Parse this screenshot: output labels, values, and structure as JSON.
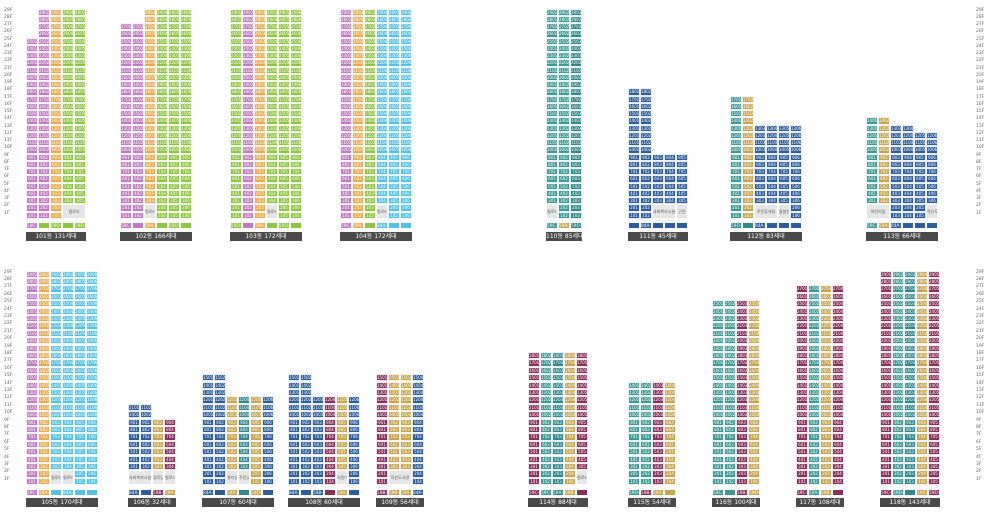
{
  "colors": {
    "59C-1": "#c27ac5",
    "59A-1": "#f0a94a",
    "59D-1": "#8dc63f",
    "84A-1": "#53c1e8",
    "59C-2": "#3d9a95",
    "59A-2": "#c8a44a",
    "59D-2": "#2f8a8f",
    "84A-2": "#2c5da0",
    "59B-2": "#8b2f5a"
  },
  "floor_labels": [
    "29F",
    "28F",
    "27F",
    "26F",
    "25F",
    "24F",
    "23F",
    "22F",
    "21F",
    "20F",
    "19F",
    "18F",
    "17F",
    "16F",
    "15F",
    "14F",
    "13F",
    "12F",
    "11F",
    "10F",
    "9F",
    "8F",
    "7F",
    "6F",
    "5F",
    "4F",
    "3F",
    "2F",
    "1F"
  ],
  "buildings": [
    {
      "id": "101",
      "label": "101동 131세대",
      "top_floor": [
        25,
        29,
        29,
        29,
        29
      ],
      "types": [
        "59C-1",
        "59C-1",
        "59A-1",
        "59D-1",
        "59D-1"
      ],
      "blanks": [
        {
          "cols": [
            3,
            4
          ],
          "from": 1,
          "to": 2,
          "text": "필로티"
        }
      ],
      "type_strip": [
        "59C-1",
        "59D-1",
        "59D-1",
        "59D-1",
        "59D-1"
      ],
      "type_labels": [
        "59C-1",
        "",
        "59D-1",
        "",
        "59D-1"
      ]
    },
    {
      "id": "102",
      "label": "102동 166세대",
      "top_floor": [
        27,
        27,
        29,
        29,
        29,
        29
      ],
      "types": [
        "59C-1",
        "59C-1",
        "59A-1",
        "59D-1",
        "59D-1",
        "59D-1"
      ],
      "blanks": [
        {
          "cols": [
            2
          ],
          "from": 1,
          "to": 2,
          "text": "필로티"
        }
      ],
      "type_strip": [
        "59C-1",
        "59C-1",
        "59A-1",
        "59D-1",
        "59D-1",
        "59D-1"
      ],
      "type_labels": [
        "59C-1",
        "",
        "59A-1",
        "",
        "59D-1",
        ""
      ]
    },
    {
      "id": "103",
      "label": "103동 172세대",
      "top_floor": [
        29,
        29,
        29,
        29,
        29,
        29
      ],
      "types": [
        "59D-1",
        "59C-1",
        "59A-1",
        "59D-1",
        "59D-1",
        "59D-1"
      ],
      "blanks": [
        {
          "cols": [
            3
          ],
          "from": 1,
          "to": 2,
          "text": "필로티"
        }
      ],
      "type_strip": [
        "59D-1",
        "59C-1",
        "59A-1",
        "59D-1",
        "59D-1",
        "59D-1"
      ],
      "type_labels": [
        "59D-1",
        "",
        "59A-1",
        "",
        "59D-1",
        ""
      ]
    },
    {
      "id": "104",
      "label": "104동 172세대",
      "top_floor": [
        29,
        29,
        29,
        29,
        29,
        29
      ],
      "types": [
        "59C-1",
        "59A-1",
        "59D-1",
        "84A-1",
        "84A-1",
        "84A-1"
      ],
      "blanks": [
        {
          "cols": [
            3
          ],
          "from": 1,
          "to": 2,
          "text": "필로티"
        }
      ],
      "type_strip": [
        "59C-1",
        "59A-1",
        "59D-1",
        "84A-1",
        "84A-1",
        "84A-1"
      ],
      "type_labels": [
        "59C-1",
        "59A-1",
        "",
        "84A-1",
        "",
        ""
      ]
    },
    {
      "id": "110",
      "label": "110동 85세대",
      "top_floor": [
        29,
        29,
        29
      ],
      "types": [
        "59C-2",
        "59C-2",
        "59D-2"
      ],
      "blanks": [
        {
          "cols": [
            0
          ],
          "from": 1,
          "to": 2,
          "text": "필로티"
        }
      ],
      "type_strip": [
        "59C-2",
        "59A-2",
        "59D-2"
      ],
      "type_labels": [
        "59C-2",
        "59A-2",
        "59D-2"
      ]
    },
    {
      "id": "111",
      "label": "111동 45세대",
      "top_floor": [
        18,
        18,
        9,
        9,
        9
      ],
      "types": [
        "84A-2",
        "84A-2",
        "84A-2",
        "84A-2",
        "84A-2"
      ],
      "blanks": [
        {
          "cols": [
            2,
            3
          ],
          "from": 1,
          "to": 2,
          "text": "사회복지시설"
        },
        {
          "cols": [
            4
          ],
          "from": 1,
          "to": 2,
          "text": "근린"
        }
      ],
      "type_strip": [
        "84A-2",
        "84A-2",
        "84A-2",
        "84A-2",
        "84A-2"
      ],
      "type_labels": [
        "",
        "84A-2",
        "",
        "",
        ""
      ]
    },
    {
      "id": "112",
      "label": "112동 83세대",
      "top_floor": [
        17,
        17,
        13,
        13,
        13,
        13
      ],
      "types": [
        "59C-2",
        "59A-2",
        "84A-2",
        "84A-2",
        "84A-2",
        "84A-2"
      ],
      "blanks": [
        {
          "cols": [
            2,
            3
          ],
          "from": 1,
          "to": 2,
          "text": "주민휴게실"
        },
        {
          "cols": [
            4
          ],
          "from": 1,
          "to": 2,
          "text": "돌봄센터"
        }
      ],
      "type_strip": [
        "59D-2",
        "59D-2",
        "84A-2",
        "84A-2",
        "84A-2",
        "84A-2"
      ],
      "type_labels": [
        "59D-2",
        "",
        "84A-2",
        "",
        "",
        ""
      ]
    },
    {
      "id": "113",
      "label": "113동 66세대",
      "top_floor": [
        14,
        14,
        13,
        13,
        12,
        12
      ],
      "types": [
        "59C-2",
        "59A-2",
        "84A-2",
        "84A-2",
        "84A-2",
        "84A-2"
      ],
      "blanks": [
        {
          "cols": [
            0,
            1
          ],
          "from": 1,
          "to": 2,
          "text": "어린이집"
        },
        {
          "cols": [
            5
          ],
          "from": 1,
          "to": 2,
          "text": "작은도서관"
        }
      ],
      "type_strip": [
        "59C-2",
        "59A-2",
        "84A-2",
        "84A-2",
        "84A-2",
        "84A-2"
      ],
      "type_labels": [
        "59C-2",
        "59A-2",
        "84A-2",
        "",
        "",
        ""
      ]
    },
    {
      "id": "105",
      "label": "105동 170세대",
      "top_floor": [
        29,
        29,
        29,
        29,
        29,
        29
      ],
      "types": [
        "59C-1",
        "59A-1",
        "84A-1",
        "84A-1",
        "84A-1",
        "84A-1"
      ],
      "blanks": [
        {
          "cols": [
            2
          ],
          "from": 1,
          "to": 2,
          "text": "필로티"
        },
        {
          "cols": [
            3
          ],
          "from": 1,
          "to": 2,
          "text": "필로티"
        }
      ],
      "type_strip": [
        "59C-1",
        "59A-1",
        "84A-1",
        "84A-1",
        "84A-1",
        "84A-1"
      ],
      "type_labels": [
        "59C-1",
        "59A-1",
        "",
        "84A-1",
        "",
        ""
      ]
    },
    {
      "id": "106",
      "label": "106동 32세대",
      "top_floor": [
        11,
        11,
        9,
        9
      ],
      "types": [
        "84A-2",
        "84A-2",
        "59A-2",
        "59B-2"
      ],
      "blanks": [
        {
          "cols": [
            0,
            1
          ],
          "from": 1,
          "to": 2,
          "text": "사회복지시설"
        },
        {
          "cols": [
            2
          ],
          "from": 1,
          "to": 2,
          "text": "경로당"
        },
        {
          "cols": [
            3
          ],
          "from": 1,
          "to": 2,
          "text": "필로티"
        }
      ],
      "type_strip": [
        "84A-2",
        "84A-2",
        "59B-2",
        "59A-2"
      ],
      "type_labels": [
        "84A-2",
        "",
        "59B-2",
        "59A-2"
      ]
    },
    {
      "id": "107",
      "label": "107동 60세대",
      "top_floor": [
        15,
        15,
        12,
        12,
        12,
        12
      ],
      "types": [
        "84A-2",
        "84A-2",
        "59A-2",
        "59D-2",
        "59A-2",
        "84A-2"
      ],
      "blanks": [
        {
          "cols": [
            2
          ],
          "from": 1,
          "to": 2,
          "text": "관리실"
        },
        {
          "cols": [
            3
          ],
          "from": 1,
          "to": 2,
          "text": "주민공동시설"
        }
      ],
      "type_strip": [
        "84A-2",
        "84A-2",
        "59A-2",
        "59D-2",
        "59A-2",
        "84A-2"
      ],
      "type_labels": [
        "84A-2",
        "",
        "59A-2",
        "",
        "59D-2",
        ""
      ]
    },
    {
      "id": "108",
      "label": "108동 60세대",
      "top_floor": [
        15,
        15,
        12,
        12,
        12,
        12
      ],
      "types": [
        "84A-2",
        "84A-2",
        "84A-2",
        "59B-2",
        "59A-2",
        "84A-2"
      ],
      "blanks": [
        {
          "cols": [
            4
          ],
          "from": 1,
          "to": 2,
          "text": "어린이집"
        }
      ],
      "type_strip": [
        "84A-2",
        "84A-2",
        "84A-2",
        "59B-2",
        "59A-2",
        "84A-2"
      ],
      "type_labels": [
        "84A-2",
        "",
        "59B-2",
        "",
        "59A-2",
        ""
      ]
    },
    {
      "id": "109",
      "label": "109동 56세대",
      "top_floor": [
        15,
        15,
        15,
        15
      ],
      "types": [
        "59B-2",
        "59A-2",
        "59A-2",
        "84A-2"
      ],
      "blanks": [
        {
          "cols": [
            1,
            2
          ],
          "from": 1,
          "to": 2,
          "text": "작은도서관"
        }
      ],
      "type_strip": [
        "59B-2",
        "59A-2",
        "59A-2",
        "84A-2"
      ],
      "type_labels": [
        "59B-2",
        "59B-2",
        "59A-2",
        "84A-2"
      ]
    },
    {
      "id": "114",
      "label": "114동 88세대",
      "top_floor": [
        18,
        18,
        18,
        18,
        18
      ],
      "types": [
        "59B-2",
        "59C-2",
        "59D-2",
        "59A-2",
        "59B-2"
      ],
      "blanks": [
        {
          "cols": [
            4
          ],
          "from": 1,
          "to": 2,
          "text": "필로티"
        }
      ],
      "type_strip": [
        "59B-2",
        "59C-2",
        "59D-2",
        "59A-2",
        "59B-2"
      ],
      "type_labels": [
        "59C-2",
        "59C-2",
        "59A-2",
        "59B-2",
        ""
      ]
    },
    {
      "id": "115",
      "label": "115동 54세대",
      "top_floor": [
        14,
        14,
        14,
        14
      ],
      "types": [
        "59C-2",
        "59C-2",
        "59B-2",
        "59A-2"
      ],
      "blanks": [],
      "type_strip": [
        "59C-2",
        "59B-2",
        "59A-2",
        "59A-2"
      ],
      "type_labels": [
        "59D-2",
        "59B-2",
        "59A-2",
        ""
      ]
    },
    {
      "id": "116",
      "label": "116동 100세대",
      "top_floor": [
        25,
        25,
        25,
        25
      ],
      "types": [
        "59C-2",
        "59C-2",
        "59B-2",
        "59A-2"
      ],
      "blanks": [],
      "type_strip": [
        "59C-2",
        "59C-2",
        "59B-2",
        "59A-2"
      ],
      "type_labels": [
        "59C-2",
        "",
        "59B-2",
        "59D-2"
      ]
    },
    {
      "id": "117",
      "label": "117동 108세대",
      "top_floor": [
        27,
        27,
        27,
        27
      ],
      "types": [
        "59B-2",
        "59C-2",
        "59A-2",
        "59B-2"
      ],
      "blanks": [],
      "type_strip": [
        "59B-2",
        "59C-2",
        "59A-2",
        "59B-2"
      ],
      "type_labels": [
        "59C-2",
        "59A-2",
        "59B-2",
        ""
      ]
    },
    {
      "id": "118",
      "label": "118동 143세대",
      "top_floor": [
        29,
        29,
        29,
        29,
        29
      ],
      "types": [
        "59B-2",
        "59C-2",
        "59D-2",
        "59A-2",
        "59B-2"
      ],
      "blanks": [],
      "type_strip": [
        "59B-2",
        "59C-2",
        "59D-2",
        "59A-2",
        "59B-2"
      ],
      "type_labels": [
        "59C-2",
        "59D-2",
        "",
        "59A-2",
        "59D-2"
      ]
    }
  ]
}
